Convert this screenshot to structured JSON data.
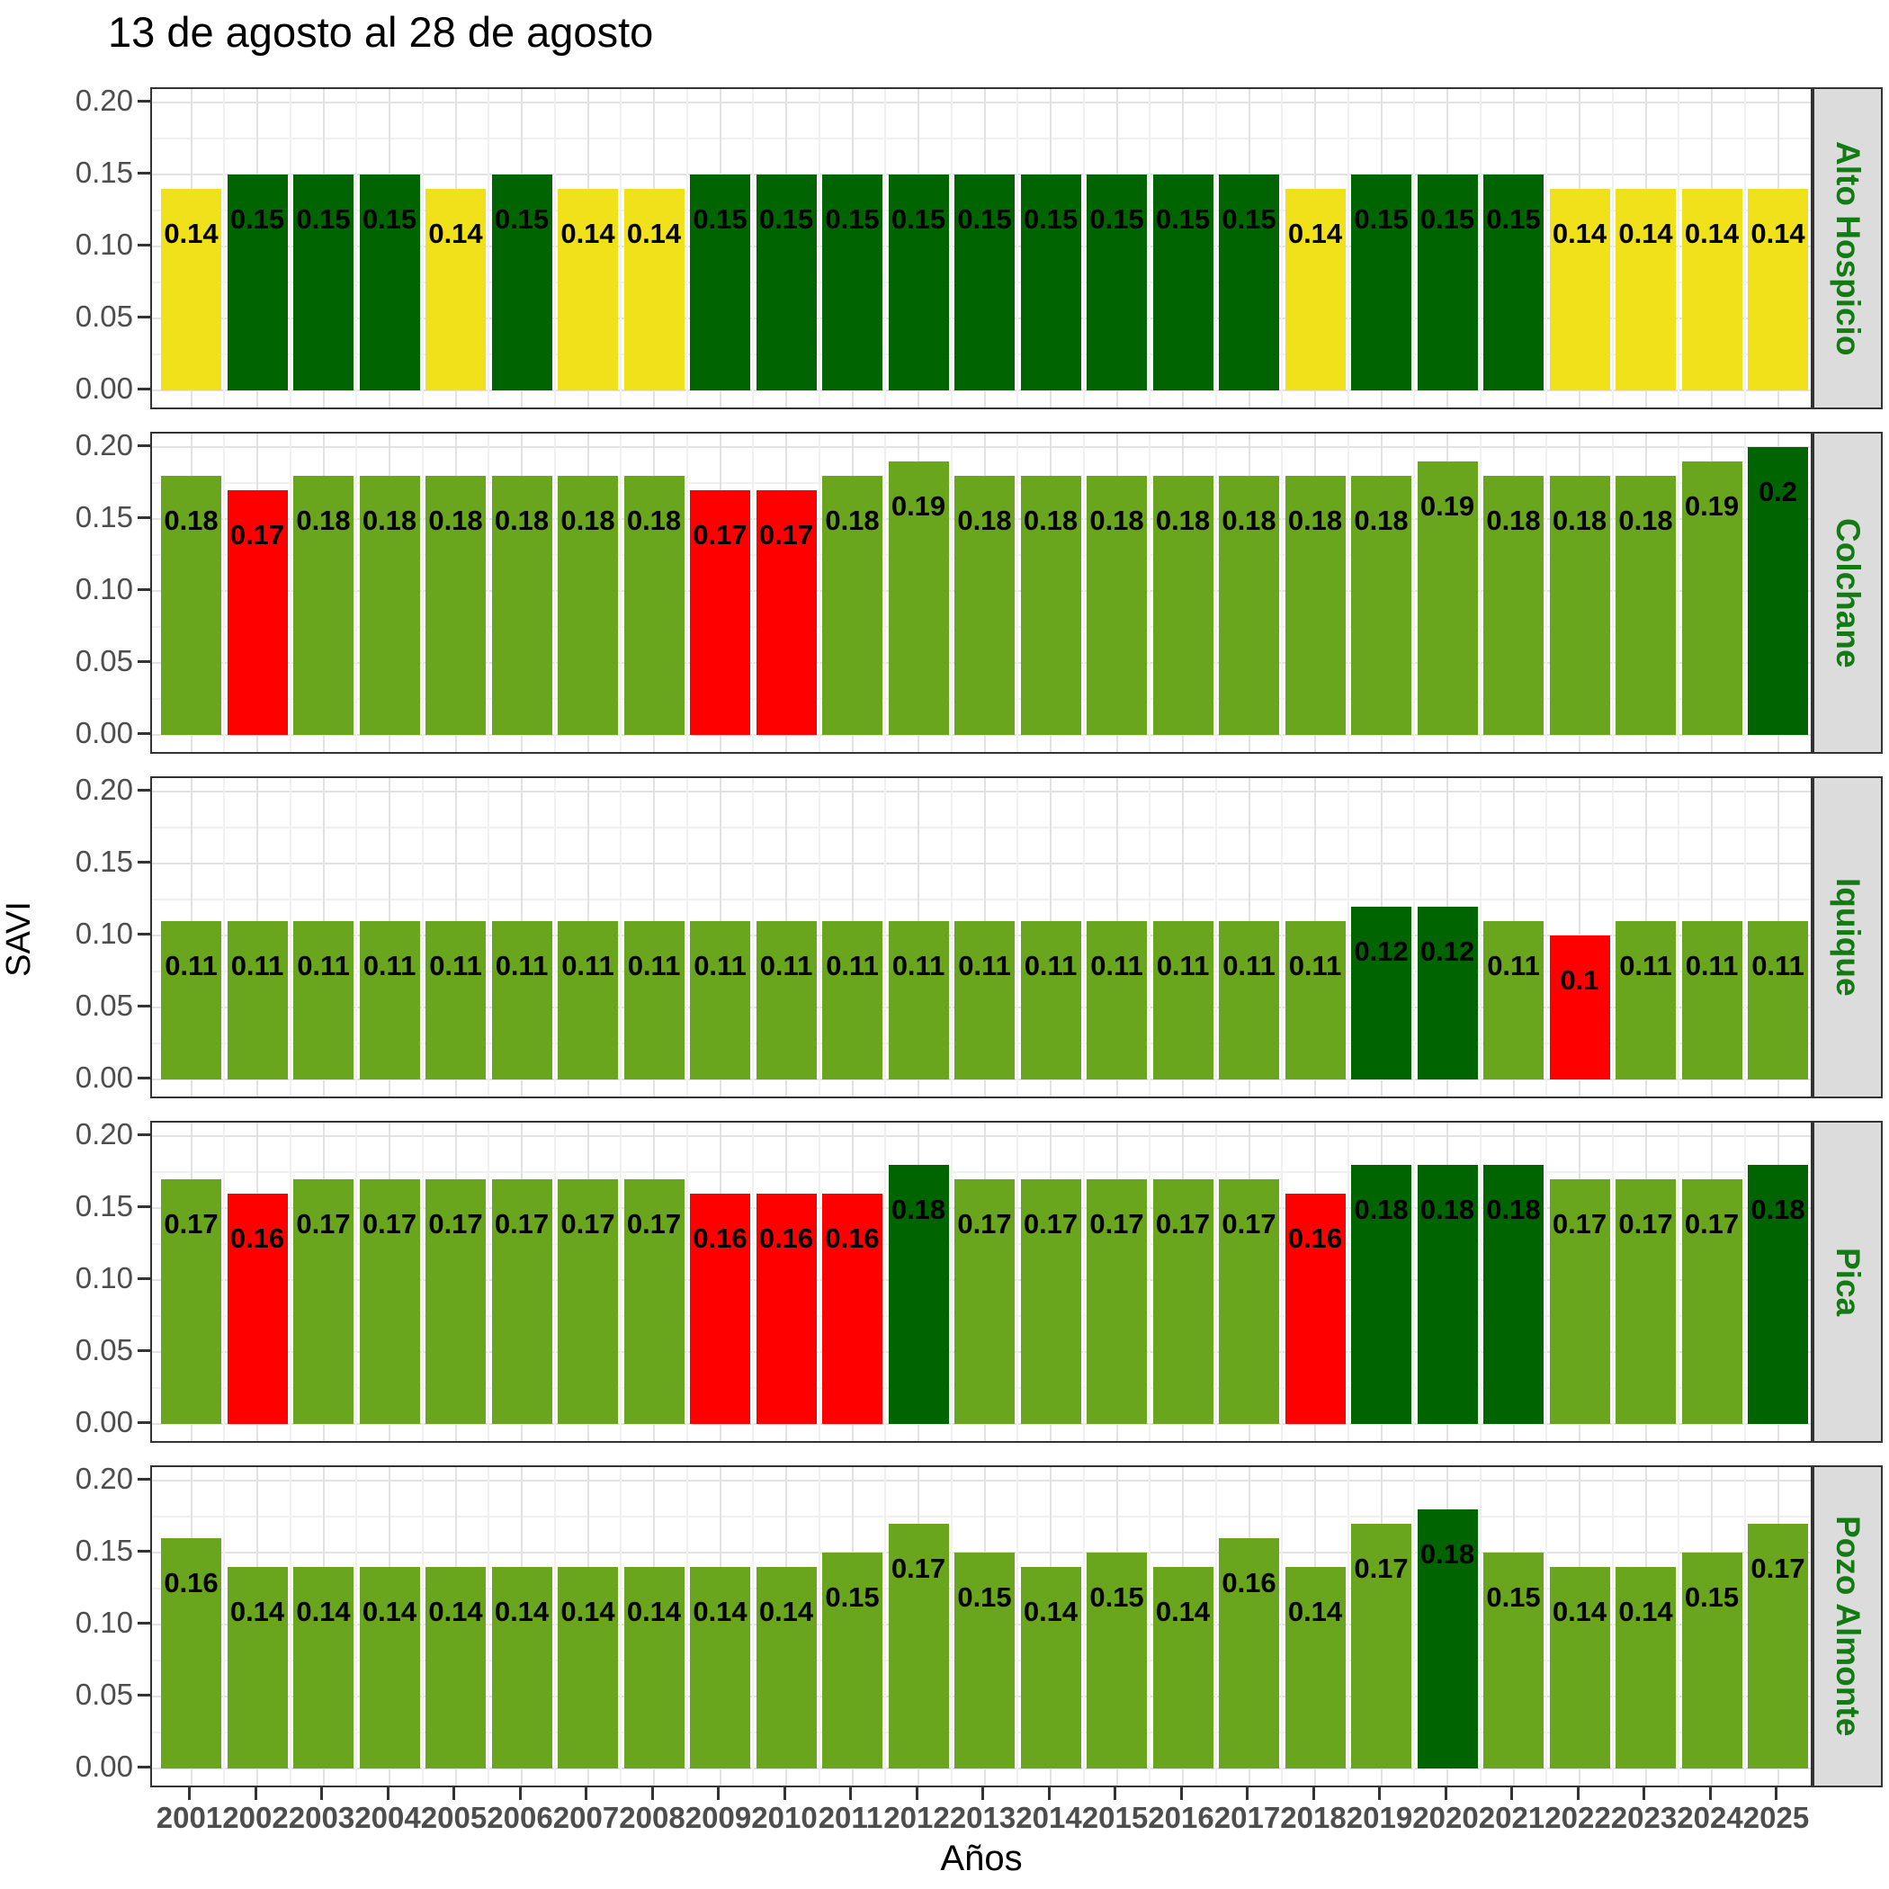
{
  "title": "13 de agosto al 28 de agosto",
  "x_axis_title": "Años",
  "y_axis_title": "SAVI",
  "colors": {
    "g": "#6AA51E",
    "dg": "#006400",
    "y": "#F0E11B",
    "r": "#FF0000",
    "strip_bg": "#DCDCDC",
    "strip_text": "#147A14",
    "axis_text": "#4D4D4D",
    "grid_major": "#E2E2E2",
    "grid_minor": "#F0F0F0",
    "panel_border": "#333333"
  },
  "chart_data": {
    "type": "bar",
    "title": "13 de agosto al 28 de agosto",
    "xlabel": "Años",
    "ylabel": "SAVI",
    "ylim": [
      0,
      0.205
    ],
    "y_ticks": [
      "0.00",
      "0.05",
      "0.10",
      "0.15",
      "0.20"
    ],
    "y_tick_values": [
      0,
      0.05,
      0.1,
      0.15,
      0.2
    ],
    "grid": "on",
    "legend_position": "none",
    "categories": [
      2001,
      2002,
      2003,
      2004,
      2005,
      2006,
      2007,
      2008,
      2009,
      2010,
      2011,
      2012,
      2013,
      2014,
      2015,
      2016,
      2017,
      2018,
      2019,
      2020,
      2021,
      2022,
      2023,
      2024,
      2025
    ],
    "facets": [
      {
        "name": "Alto Hospicio",
        "values": [
          0.14,
          0.15,
          0.15,
          0.15,
          0.14,
          0.15,
          0.14,
          0.14,
          0.15,
          0.15,
          0.15,
          0.15,
          0.15,
          0.15,
          0.15,
          0.15,
          0.15,
          0.14,
          0.15,
          0.15,
          0.15,
          0.14,
          0.14,
          0.14,
          0.14
        ],
        "labels": [
          "0.14",
          "0.15",
          "0.15",
          "0.15",
          "0.14",
          "0.15",
          "0.14",
          "0.14",
          "0.15",
          "0.15",
          "0.15",
          "0.15",
          "0.15",
          "0.15",
          "0.15",
          "0.15",
          "0.15",
          "0.14",
          "0.15",
          "0.15",
          "0.15",
          "0.14",
          "0.14",
          "0.14",
          "0.14"
        ],
        "bar_colors": [
          "y",
          "dg",
          "dg",
          "dg",
          "y",
          "dg",
          "y",
          "y",
          "dg",
          "dg",
          "dg",
          "dg",
          "dg",
          "dg",
          "dg",
          "dg",
          "dg",
          "y",
          "dg",
          "dg",
          "dg",
          "y",
          "y",
          "y",
          "y"
        ]
      },
      {
        "name": "Colchane",
        "values": [
          0.18,
          0.17,
          0.18,
          0.18,
          0.18,
          0.18,
          0.18,
          0.18,
          0.17,
          0.17,
          0.18,
          0.19,
          0.18,
          0.18,
          0.18,
          0.18,
          0.18,
          0.18,
          0.18,
          0.19,
          0.18,
          0.18,
          0.18,
          0.19,
          0.2
        ],
        "labels": [
          "0.18",
          "0.17",
          "0.18",
          "0.18",
          "0.18",
          "0.18",
          "0.18",
          "0.18",
          "0.17",
          "0.17",
          "0.18",
          "0.19",
          "0.18",
          "0.18",
          "0.18",
          "0.18",
          "0.18",
          "0.18",
          "0.18",
          "0.19",
          "0.18",
          "0.18",
          "0.18",
          "0.19",
          "0.2"
        ],
        "bar_colors": [
          "g",
          "r",
          "g",
          "g",
          "g",
          "g",
          "g",
          "g",
          "r",
          "r",
          "g",
          "g",
          "g",
          "g",
          "g",
          "g",
          "g",
          "g",
          "g",
          "g",
          "g",
          "g",
          "g",
          "g",
          "dg"
        ]
      },
      {
        "name": "Iquique",
        "values": [
          0.11,
          0.11,
          0.11,
          0.11,
          0.11,
          0.11,
          0.11,
          0.11,
          0.11,
          0.11,
          0.11,
          0.11,
          0.11,
          0.11,
          0.11,
          0.11,
          0.11,
          0.11,
          0.12,
          0.12,
          0.11,
          0.1,
          0.11,
          0.11,
          0.11
        ],
        "labels": [
          "0.11",
          "0.11",
          "0.11",
          "0.11",
          "0.11",
          "0.11",
          "0.11",
          "0.11",
          "0.11",
          "0.11",
          "0.11",
          "0.11",
          "0.11",
          "0.11",
          "0.11",
          "0.11",
          "0.11",
          "0.11",
          "0.12",
          "0.12",
          "0.11",
          "0.1",
          "0.11",
          "0.11",
          "0.11"
        ],
        "bar_colors": [
          "g",
          "g",
          "g",
          "g",
          "g",
          "g",
          "g",
          "g",
          "g",
          "g",
          "g",
          "g",
          "g",
          "g",
          "g",
          "g",
          "g",
          "g",
          "dg",
          "dg",
          "g",
          "r",
          "g",
          "g",
          "g"
        ]
      },
      {
        "name": "Pica",
        "values": [
          0.17,
          0.16,
          0.17,
          0.17,
          0.17,
          0.17,
          0.17,
          0.17,
          0.16,
          0.16,
          0.16,
          0.18,
          0.17,
          0.17,
          0.17,
          0.17,
          0.17,
          0.16,
          0.18,
          0.18,
          0.18,
          0.17,
          0.17,
          0.17,
          0.18
        ],
        "labels": [
          "0.17",
          "0.16",
          "0.17",
          "0.17",
          "0.17",
          "0.17",
          "0.17",
          "0.17",
          "0.16",
          "0.16",
          "0.16",
          "0.18",
          "0.17",
          "0.17",
          "0.17",
          "0.17",
          "0.17",
          "0.16",
          "0.18",
          "0.18",
          "0.18",
          "0.17",
          "0.17",
          "0.17",
          "0.18"
        ],
        "bar_colors": [
          "g",
          "r",
          "g",
          "g",
          "g",
          "g",
          "g",
          "g",
          "r",
          "r",
          "r",
          "dg",
          "g",
          "g",
          "g",
          "g",
          "g",
          "r",
          "dg",
          "dg",
          "dg",
          "g",
          "g",
          "g",
          "dg"
        ]
      },
      {
        "name": "Pozo Almonte",
        "values": [
          0.16,
          0.14,
          0.14,
          0.14,
          0.14,
          0.14,
          0.14,
          0.14,
          0.14,
          0.14,
          0.15,
          0.17,
          0.15,
          0.14,
          0.15,
          0.14,
          0.16,
          0.14,
          0.17,
          0.18,
          0.15,
          0.14,
          0.14,
          0.15,
          0.17
        ],
        "labels": [
          "0.16",
          "0.14",
          "0.14",
          "0.14",
          "0.14",
          "0.14",
          "0.14",
          "0.14",
          "0.14",
          "0.14",
          "0.15",
          "0.17",
          "0.15",
          "0.14",
          "0.15",
          "0.14",
          "0.16",
          "0.14",
          "0.17",
          "0.18",
          "0.15",
          "0.14",
          "0.14",
          "0.15",
          "0.17"
        ],
        "bar_colors": [
          "g",
          "g",
          "g",
          "g",
          "g",
          "g",
          "g",
          "g",
          "g",
          "g",
          "g",
          "g",
          "g",
          "g",
          "g",
          "g",
          "g",
          "g",
          "g",
          "dg",
          "g",
          "g",
          "g",
          "g",
          "g"
        ]
      }
    ]
  }
}
